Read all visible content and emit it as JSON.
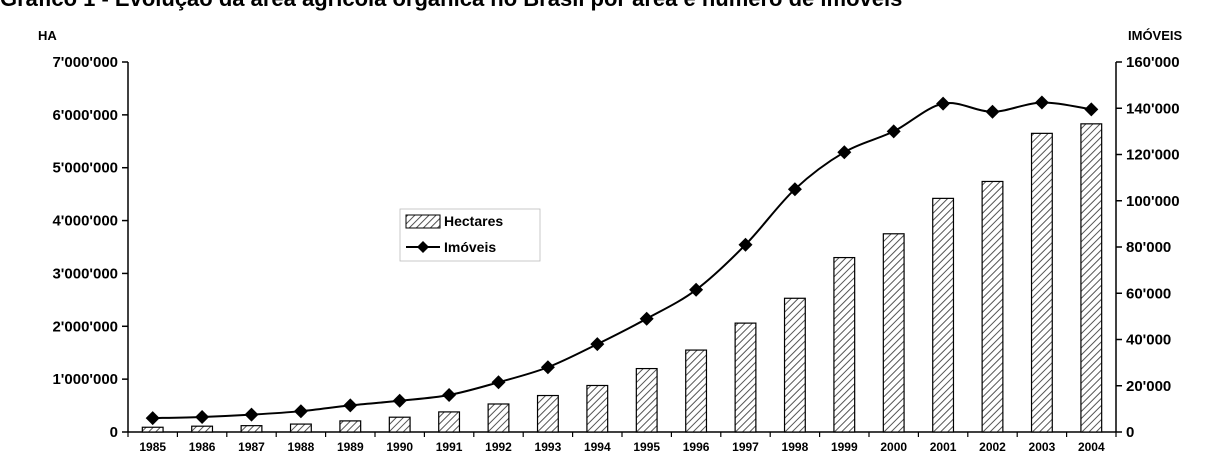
{
  "chart_data": {
    "type": "bar",
    "title": "Gráfico 1 - Evolução da área agrícola orgânica no Brasil por área e número de imóveis",
    "y_left_label": "HA",
    "y_right_label": "IMÓVEIS",
    "categories": [
      "1985",
      "1986",
      "1987",
      "1988",
      "1989",
      "1990",
      "1991",
      "1992",
      "1993",
      "1994",
      "1995",
      "1996",
      "1997",
      "1998",
      "1999",
      "2000",
      "2001",
      "2002",
      "2003",
      "2004"
    ],
    "series": [
      {
        "name": "Hectares",
        "type": "bar",
        "axis": "left",
        "values": [
          90000,
          110000,
          120000,
          150000,
          210000,
          280000,
          380000,
          530000,
          690000,
          880000,
          1200000,
          1550000,
          2060000,
          2530000,
          3300000,
          3750000,
          4420000,
          4740000,
          5650000,
          5830000
        ]
      },
      {
        "name": "Imóveis",
        "type": "line",
        "axis": "right",
        "values": [
          6000,
          6500,
          7500,
          9000,
          11500,
          13500,
          16000,
          21500,
          28000,
          38000,
          49000,
          61500,
          81000,
          105000,
          121000,
          130000,
          142000,
          138500,
          142500,
          139500
        ]
      }
    ],
    "y_left_ticks": [
      "0",
      "1'000'000",
      "2'000'000",
      "3'000'000",
      "4'000'000",
      "5'000'000",
      "6'000'000",
      "7'000'000"
    ],
    "y_left_range": [
      0,
      7000000
    ],
    "y_right_ticks": [
      "0",
      "20'000",
      "40'000",
      "60'000",
      "80'000",
      "100'000",
      "120'000",
      "140'000",
      "160'000"
    ],
    "y_right_range": [
      0,
      160000
    ],
    "legend": {
      "items": [
        "Hectares",
        "Imóveis"
      ],
      "placement": "center-left"
    },
    "grid": false
  }
}
